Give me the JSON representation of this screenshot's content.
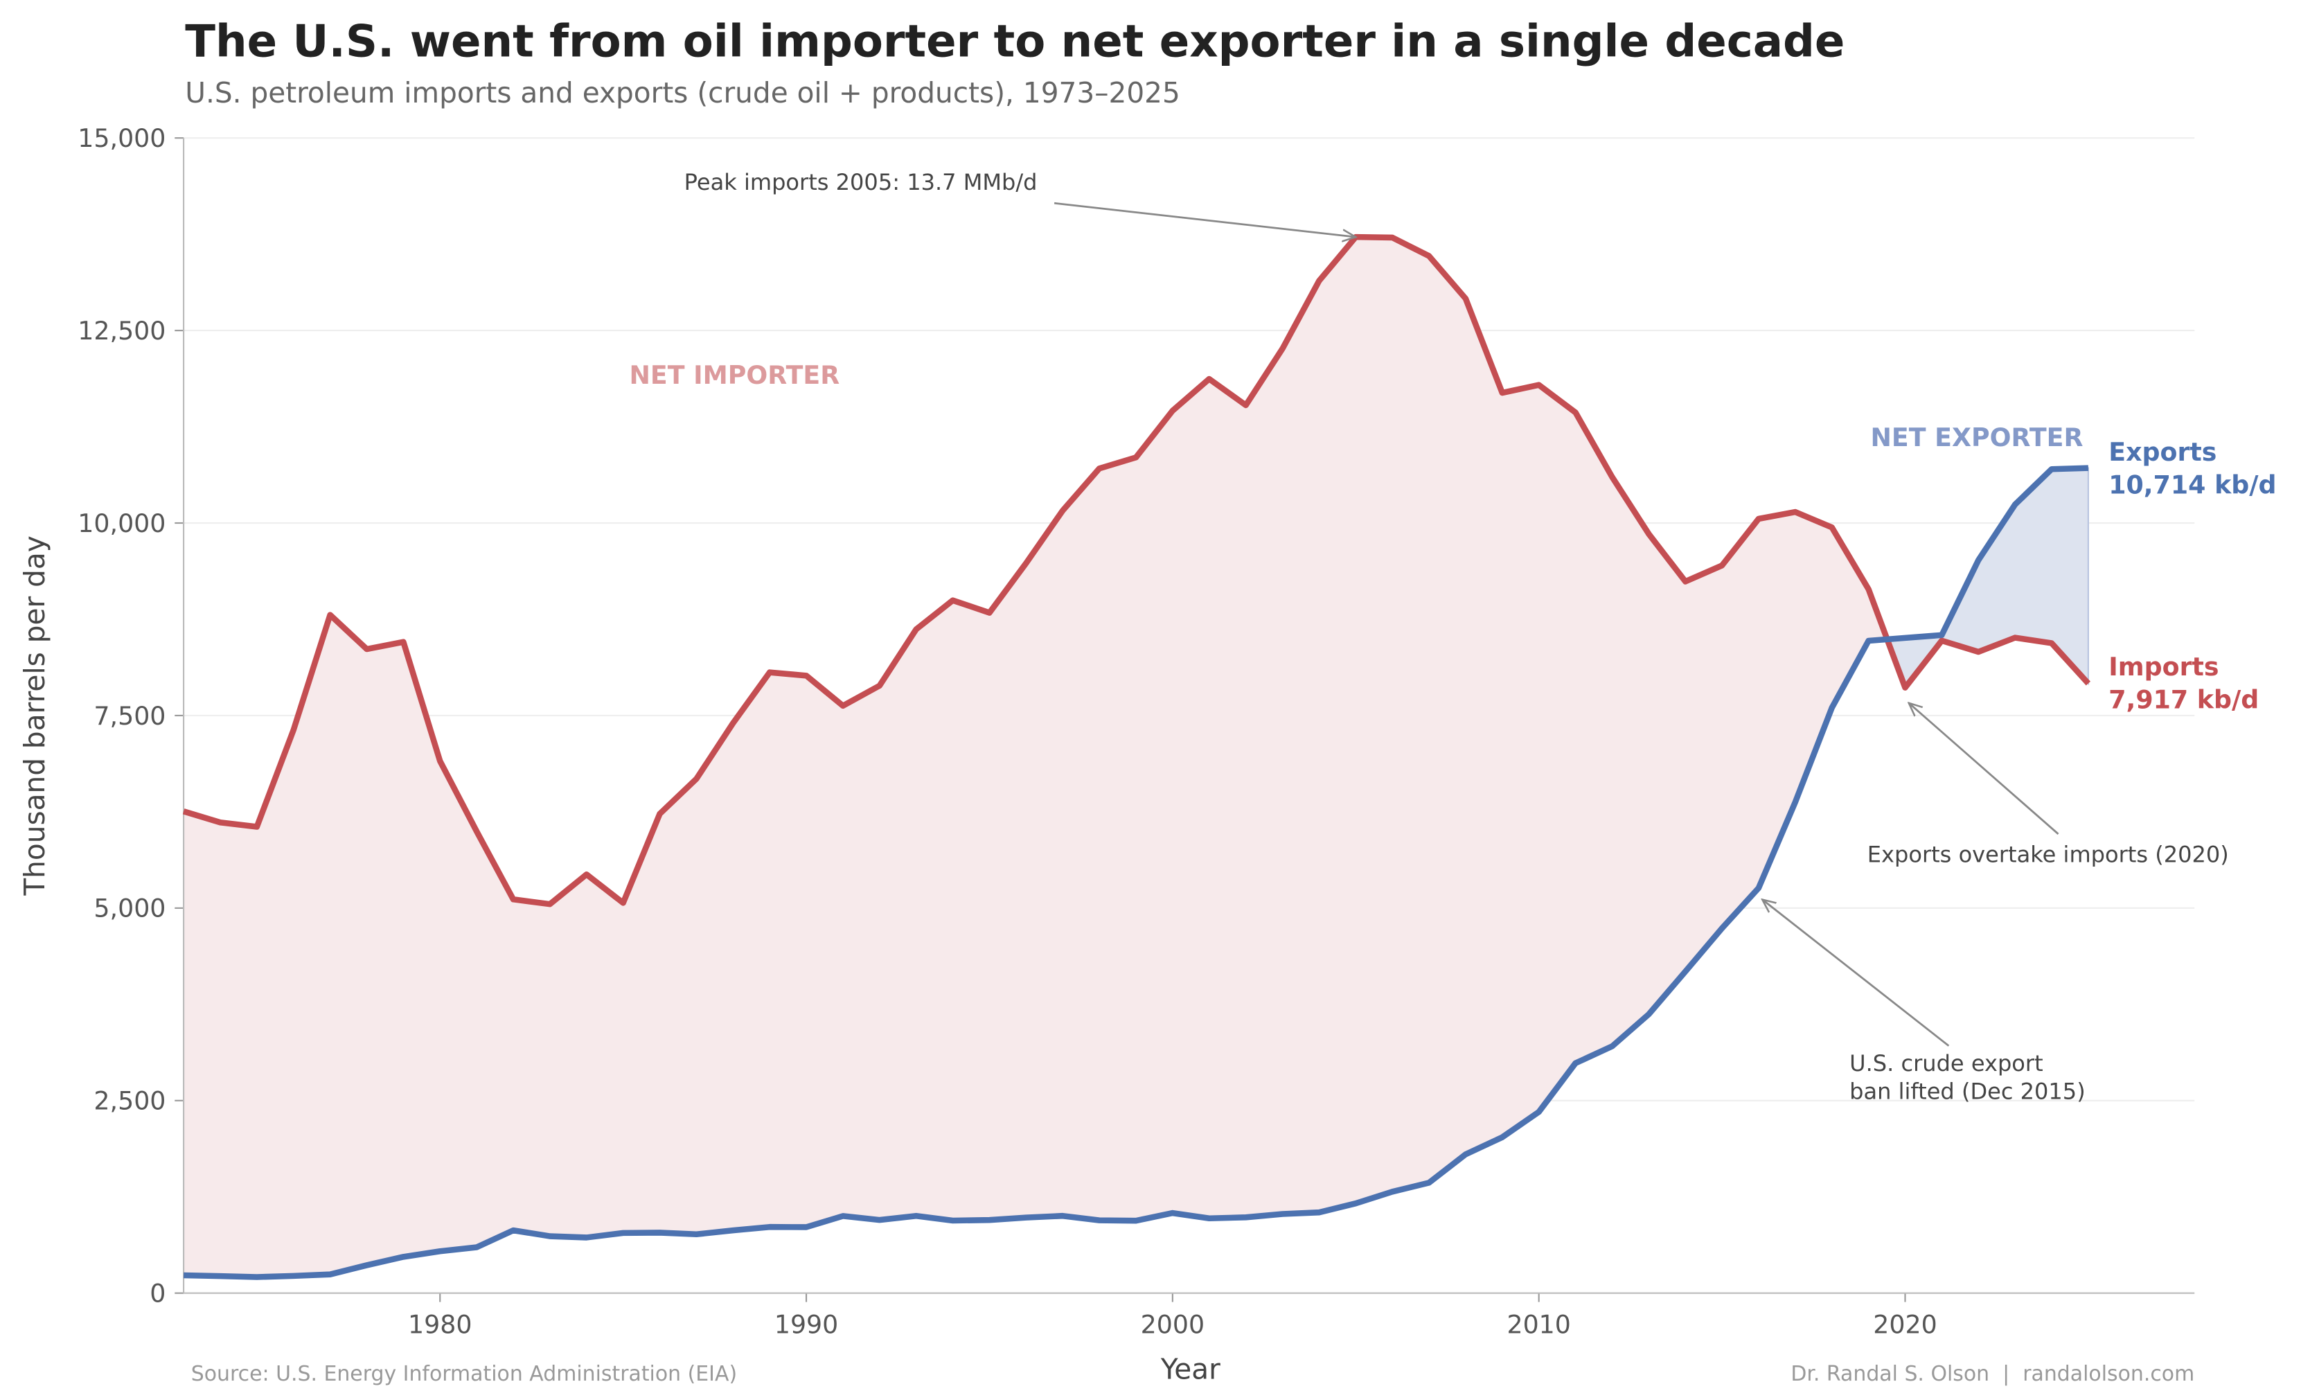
{
  "chart_data": {
    "type": "line",
    "title": "The U.S. went from oil importer to net exporter in a single decade",
    "subtitle": "U.S. petroleum imports and exports (crude oil + products), 1973–2025",
    "xlabel": "Year",
    "ylabel": "Thousand barrels per day",
    "xlim": [
      1973,
      2027.9
    ],
    "ylim": [
      0,
      15000
    ],
    "grid": "horizontal",
    "xticks": [
      1980,
      1990,
      2000,
      2010,
      2020
    ],
    "yticks": [
      0,
      2500,
      5000,
      7500,
      10000,
      12500,
      15000
    ],
    "ytick_labels": [
      "0",
      "2,500",
      "5,000",
      "7,500",
      "10,000",
      "12,500",
      "15,000"
    ],
    "colors": {
      "imports": "#c44e52",
      "exports": "#4c72b0",
      "importer_fill": "#f7eaeb",
      "exporter_fill": "#dde3ef"
    },
    "x": [
      1973,
      1974,
      1975,
      1976,
      1977,
      1978,
      1979,
      1980,
      1981,
      1982,
      1983,
      1984,
      1985,
      1986,
      1987,
      1988,
      1989,
      1990,
      1991,
      1992,
      1993,
      1994,
      1995,
      1996,
      1997,
      1998,
      1999,
      2000,
      2001,
      2002,
      2003,
      2004,
      2005,
      2006,
      2007,
      2008,
      2009,
      2010,
      2011,
      2012,
      2013,
      2014,
      2015,
      2016,
      2017,
      2018,
      2019,
      2020,
      2021,
      2022,
      2023,
      2024,
      2025
    ],
    "series": [
      {
        "name": "Imports",
        "end_label": "Imports",
        "end_value": "7,917 kb/d",
        "values": [
          6256,
          6112,
          6056,
          7313,
          8807,
          8363,
          8456,
          6909,
          5996,
          5113,
          5051,
          5437,
          5067,
          6224,
          6678,
          7402,
          8061,
          8018,
          7627,
          7888,
          8620,
          8996,
          8835,
          9478,
          10162,
          10708,
          10852,
          11459,
          11871,
          11530,
          12264,
          13145,
          13714,
          13707,
          13468,
          12915,
          11691,
          11793,
          11436,
          10598,
          9859,
          9241,
          9449,
          10055,
          10144,
          9943,
          9141,
          7863,
          8473,
          8327,
          8511,
          8440,
          7917
        ]
      },
      {
        "name": "Exports",
        "end_label": "Exports",
        "end_value": "10,714 kb/d",
        "values": [
          231,
          221,
          209,
          223,
          243,
          362,
          471,
          544,
          595,
          815,
          739,
          722,
          781,
          785,
          764,
          815,
          859,
          857,
          1001,
          950,
          1003,
          942,
          949,
          981,
          1003,
          945,
          940,
          1040,
          971,
          984,
          1027,
          1048,
          1165,
          1317,
          1433,
          1802,
          2024,
          2353,
          2986,
          3205,
          3621,
          4176,
          4738,
          5261,
          6376,
          7601,
          8471,
          8508,
          8545,
          9518,
          10240,
          10700,
          10714
        ]
      }
    ],
    "region_labels": {
      "importer": "NET IMPORTER",
      "exporter": "NET EXPORTER"
    },
    "annotations": [
      {
        "text": "Peak imports 2005: 13.7 MMb/d",
        "x": 2005,
        "y": 13714
      },
      {
        "text": "Exports overtake imports (2020)",
        "x": 2020,
        "y": 7863
      },
      {
        "text": "U.S. crude export ban lifted (Dec 2015)",
        "lines": [
          "U.S. crude export",
          "ban lifted (Dec 2015)"
        ],
        "x": 2016,
        "y": 5261
      }
    ],
    "source": "Source: U.S. Energy Information Administration (EIA)",
    "credit": "Dr. Randal S. Olson  |  randalolson.com"
  }
}
